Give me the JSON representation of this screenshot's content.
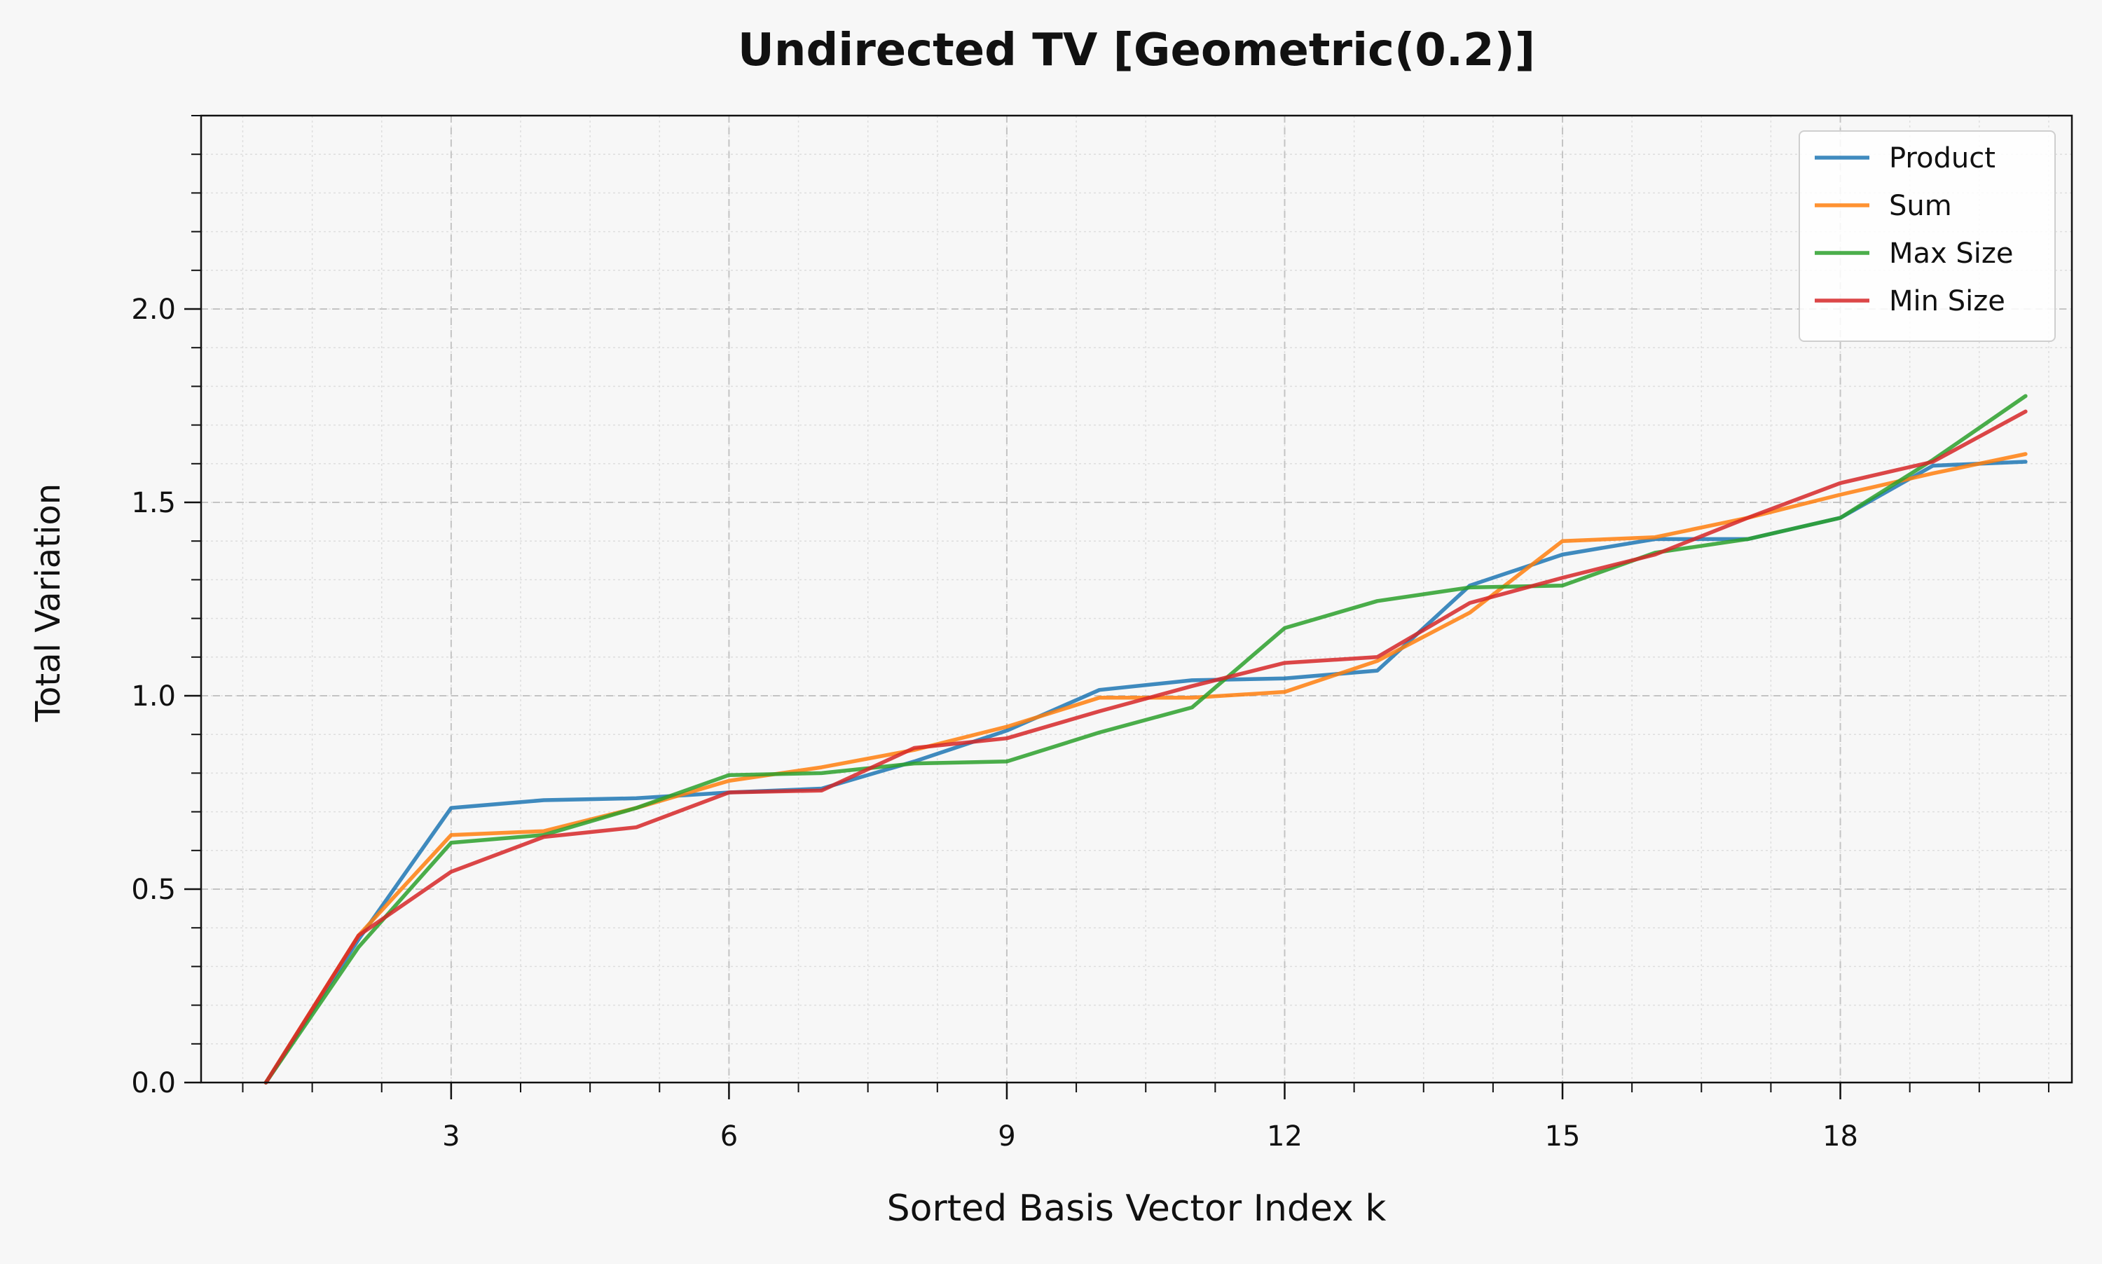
{
  "chart_data": {
    "type": "line",
    "title": "Undirected TV [Geometric(0.2)]",
    "xlabel": "Sorted Basis Vector Index k",
    "ylabel": "Total Variation",
    "xlim": [
      0.3,
      20.5
    ],
    "ylim": [
      0.0,
      2.5
    ],
    "xticks": [
      3,
      6,
      9,
      12,
      15,
      18
    ],
    "yticks": [
      0.0,
      0.5,
      1.0,
      1.5,
      2.0
    ],
    "x_minor_step": 0.75,
    "y_minor_step": 0.1,
    "grid": true,
    "legend_position": "top-right",
    "x": [
      1,
      2,
      3,
      4,
      5,
      6,
      7,
      8,
      9,
      10,
      11,
      12,
      13,
      14,
      15,
      16,
      17,
      18,
      19,
      20
    ],
    "series": [
      {
        "name": "Product",
        "color": "#1f77b4",
        "values": [
          0.0,
          0.37,
          0.71,
          0.73,
          0.735,
          0.75,
          0.76,
          0.83,
          0.91,
          1.015,
          1.04,
          1.045,
          1.065,
          1.285,
          1.365,
          1.405,
          1.405,
          1.46,
          1.595,
          1.605
        ]
      },
      {
        "name": "Sum",
        "color": "#ff7f0e",
        "values": [
          0.0,
          0.38,
          0.64,
          0.65,
          0.71,
          0.78,
          0.815,
          0.86,
          0.92,
          0.995,
          0.995,
          1.01,
          1.09,
          1.215,
          1.4,
          1.41,
          1.46,
          1.52,
          1.575,
          1.625
        ]
      },
      {
        "name": "Max Size",
        "color": "#2ca02c",
        "values": [
          0.0,
          0.35,
          0.62,
          0.64,
          0.71,
          0.795,
          0.8,
          0.825,
          0.83,
          0.905,
          0.97,
          1.175,
          1.245,
          1.28,
          1.285,
          1.37,
          1.405,
          1.46,
          1.61,
          1.775
        ]
      },
      {
        "name": "Min Size",
        "color": "#d62728",
        "values": [
          0.0,
          0.38,
          0.545,
          0.635,
          0.66,
          0.75,
          0.755,
          0.865,
          0.89,
          0.96,
          1.025,
          1.085,
          1.1,
          1.24,
          1.305,
          1.365,
          1.46,
          1.55,
          1.605,
          1.735
        ]
      }
    ]
  }
}
